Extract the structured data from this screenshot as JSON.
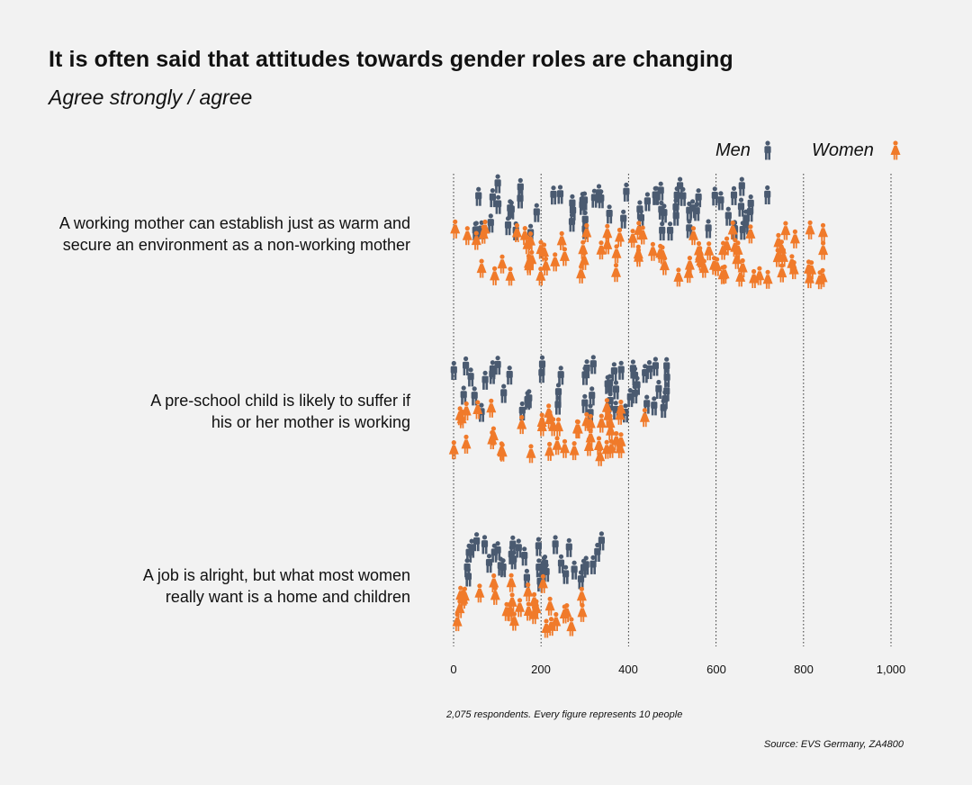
{
  "chart_data": {
    "type": "pictogram-scatter",
    "title": "It is often said that attitudes towards gender roles are changing",
    "subtitle": "Agree strongly / agree",
    "x_ticks": [
      "0",
      "200",
      "400",
      "600",
      "800",
      "1,000"
    ],
    "xlim": [
      0,
      1000
    ],
    "legend": [
      {
        "name": "Men",
        "color": "#4a5a70"
      },
      {
        "name": "Women",
        "color": "#f07a2a"
      }
    ],
    "categories": [
      {
        "line1": "A working mother can establish just as warm and",
        "line2": "secure an environment as a non-working mother",
        "men_range": [
          50,
          720
        ],
        "women_range": [
          0,
          850
        ]
      },
      {
        "line1": "A pre-school child is likely to suffer if",
        "line2": "his or her mother is working",
        "men_range": [
          0,
          510
        ],
        "women_range": [
          0,
          440
        ]
      },
      {
        "line1": "A job is alright, but what most women",
        "line2": "really want is a home and children",
        "men_range": [
          0,
          340
        ],
        "women_range": [
          0,
          300
        ]
      }
    ],
    "note": "2,075 respondents. Every figure represents 10 people",
    "source": "Source: EVS Germany, ZA4800"
  },
  "colors": {
    "men": "#4a5a70",
    "women": "#f07a2a",
    "grid": "#333333"
  }
}
